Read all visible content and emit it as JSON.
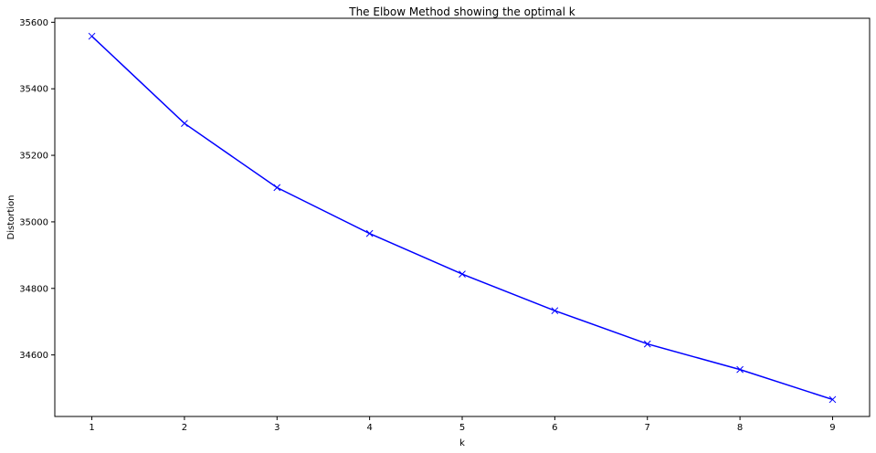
{
  "chart_data": {
    "type": "line",
    "title": "The Elbow Method showing the optimal k",
    "xlabel": "k",
    "ylabel": "Distortion",
    "x": [
      1,
      2,
      3,
      4,
      5,
      6,
      7,
      8,
      9
    ],
    "series": [
      {
        "values": [
          35558,
          35296,
          35103,
          34965,
          34843,
          34733,
          34633,
          34556,
          34466
        ],
        "color": "#0000ff",
        "marker": "x"
      }
    ],
    "xlim": [
      0.6,
      9.4
    ],
    "ylim": [
      34415,
      35612
    ],
    "xticks": [
      1,
      2,
      3,
      4,
      5,
      6,
      7,
      8,
      9
    ],
    "yticks": [
      34600,
      34800,
      35000,
      35200,
      35400,
      35600
    ],
    "grid": false
  }
}
